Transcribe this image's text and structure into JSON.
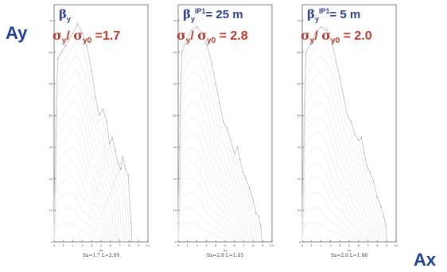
{
  "axis_labels": {
    "ay": "Ay",
    "ax": "Ax"
  },
  "chart_data": [
    {
      "type": "area",
      "annotation_beta": {
        "symbol": "β",
        "sub": "y",
        "sup": "",
        "text": ""
      },
      "annotation_ratio": {
        "sigma": "σ",
        "sub1": "y",
        "sep": "/ ",
        "sub2": "y0",
        "value": " =1.7"
      },
      "xlabel": "Ax",
      "caption": "Sx=1.7 L=2.09",
      "xlim": [
        0,
        10
      ],
      "ylim": [
        0,
        75
      ],
      "x_ticks": [
        "0",
        "1",
        "2",
        "3",
        "4",
        "5",
        "6",
        "7",
        "8",
        "9",
        "10"
      ],
      "y_ticks": [
        "0",
        "10",
        "20",
        "30",
        "40",
        "50",
        "60",
        "70"
      ],
      "outline": [
        [
          0,
          6
        ],
        [
          0.2,
          40
        ],
        [
          0.4,
          58
        ],
        [
          0.8,
          60
        ],
        [
          1.2,
          62
        ],
        [
          1.6,
          64
        ],
        [
          2.0,
          66
        ],
        [
          2.5,
          69
        ],
        [
          3.0,
          66
        ],
        [
          3.5,
          62
        ],
        [
          4.0,
          54
        ],
        [
          4.4,
          46
        ],
        [
          4.8,
          40
        ],
        [
          5.2,
          42
        ],
        [
          5.6,
          38
        ],
        [
          5.9,
          31
        ],
        [
          6.2,
          33
        ],
        [
          6.5,
          29
        ],
        [
          6.8,
          25
        ],
        [
          7.1,
          23
        ],
        [
          7.3,
          27
        ],
        [
          7.6,
          23
        ],
        [
          7.9,
          21
        ],
        [
          8.1,
          10
        ],
        [
          8.2,
          6
        ],
        [
          8.3,
          0
        ]
      ]
    },
    {
      "type": "area",
      "annotation_beta": {
        "symbol": "β",
        "sub": "y",
        "sup": "IP1",
        "text": "= 25 m"
      },
      "annotation_ratio": {
        "sigma": "σ",
        "sub1": "y",
        "sep": "/ ",
        "sub2": "y0",
        "value": " = 2.8"
      },
      "xlabel": "Ax",
      "caption": "Sx=2.8 L=1.45",
      "xlim": [
        0,
        10
      ],
      "ylim": [
        0,
        75
      ],
      "x_ticks": [
        "0",
        "1",
        "2",
        "3",
        "4",
        "5",
        "6",
        "7",
        "8",
        "9",
        "10"
      ],
      "y_ticks": [
        "0",
        "10",
        "20",
        "30",
        "40",
        "50",
        "60",
        "70"
      ],
      "outline": [
        [
          0,
          6
        ],
        [
          0.2,
          42
        ],
        [
          0.4,
          60
        ],
        [
          0.9,
          64
        ],
        [
          1.4,
          67
        ],
        [
          2.0,
          68
        ],
        [
          2.6,
          66
        ],
        [
          3.1,
          62
        ],
        [
          3.6,
          56
        ],
        [
          4.0,
          50
        ],
        [
          4.4,
          44
        ],
        [
          4.8,
          38
        ],
        [
          5.2,
          36
        ],
        [
          5.6,
          32
        ],
        [
          6.0,
          28
        ],
        [
          6.3,
          30
        ],
        [
          6.6,
          26
        ],
        [
          6.9,
          22
        ],
        [
          7.2,
          20
        ],
        [
          7.6,
          17
        ],
        [
          8.0,
          13
        ],
        [
          8.3,
          9
        ],
        [
          8.6,
          8
        ],
        [
          8.8,
          5
        ],
        [
          8.9,
          0
        ]
      ]
    },
    {
      "type": "area",
      "annotation_beta": {
        "symbol": "β",
        "sub": "y",
        "sup": "IP1",
        "text": "= 5 m"
      },
      "annotation_ratio": {
        "sigma": "σ",
        "sub1": "y",
        "sep": "/ ",
        "sub2": "y0",
        "value": " = 2.0"
      },
      "xlabel": "Ax",
      "caption": "Sx=2.0 L=1.86",
      "xlim": [
        0,
        10
      ],
      "ylim": [
        0,
        75
      ],
      "x_ticks": [
        "0",
        "1",
        "2",
        "3",
        "4",
        "5",
        "6",
        "7",
        "8",
        "9",
        "10"
      ],
      "y_ticks": [
        "0",
        "10",
        "20",
        "30",
        "40",
        "50",
        "60",
        "70"
      ],
      "outline": [
        [
          0,
          6
        ],
        [
          0.2,
          42
        ],
        [
          0.4,
          60
        ],
        [
          0.9,
          63
        ],
        [
          1.4,
          66
        ],
        [
          2.0,
          68
        ],
        [
          2.6,
          67
        ],
        [
          3.2,
          63
        ],
        [
          3.6,
          57
        ],
        [
          4.0,
          52
        ],
        [
          4.4,
          46
        ],
        [
          4.8,
          40
        ],
        [
          5.2,
          38
        ],
        [
          5.6,
          34
        ],
        [
          6.0,
          32
        ],
        [
          6.3,
          33
        ],
        [
          6.6,
          28
        ],
        [
          6.9,
          24
        ],
        [
          7.2,
          22
        ],
        [
          7.6,
          19
        ],
        [
          8.0,
          14
        ],
        [
          8.4,
          11
        ],
        [
          8.7,
          8
        ],
        [
          8.9,
          5
        ],
        [
          9.0,
          0
        ]
      ]
    }
  ]
}
